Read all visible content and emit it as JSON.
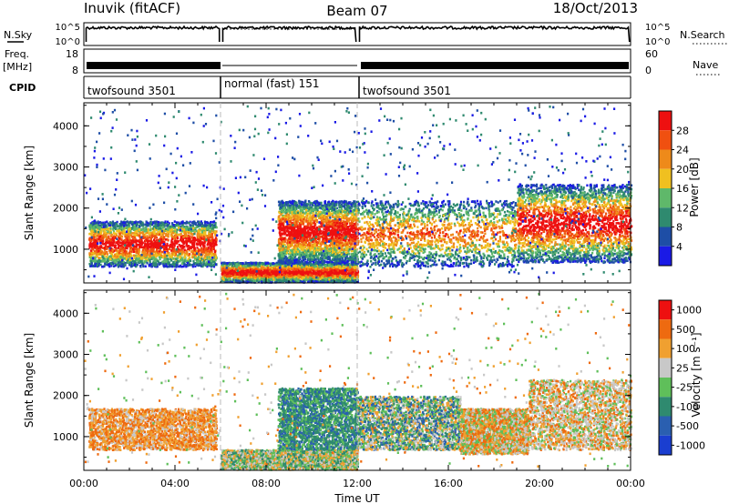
{
  "header": {
    "station": "Inuvik (fitACF)",
    "beam": "Beam 07",
    "date": "18/Oct/2013"
  },
  "sky_panel": {
    "left_label": "N.Sky",
    "right_label": "N.Search",
    "left_ticks": [
      "10^5",
      "10^0"
    ],
    "right_ticks": [
      "10^5",
      "10^0"
    ]
  },
  "freq_panel": {
    "label_line1": "Freq.",
    "label_line2": "[MHz]",
    "left_ticks": [
      "18",
      "8"
    ],
    "right_ticks": [
      "60",
      "0"
    ],
    "right_label": "Nave"
  },
  "cpid_panel": {
    "label": "CPID",
    "segments": [
      {
        "label": "twofsound 3501",
        "start_h": 0,
        "end_h": 6
      },
      {
        "label": "normal (fast) 151",
        "start_h": 6,
        "end_h": 12
      },
      {
        "label": "twofsound 3501",
        "start_h": 12,
        "end_h": 24
      }
    ]
  },
  "chart_data": [
    {
      "type": "heatmap",
      "name": "power",
      "ylabel": "Slant Range [km]",
      "xlabel": "",
      "ylim": [
        180,
        4560
      ],
      "xlim_hours": [
        0,
        24
      ],
      "yticks": [
        "1000",
        "2000",
        "3000",
        "4000"
      ],
      "colorbar": {
        "label": "Power [dB]",
        "ticks": [
          "4",
          "8",
          "12",
          "16",
          "20",
          "24",
          "28"
        ],
        "colors": [
          "#1a1ae6",
          "#1e4ea6",
          "#2f8a6f",
          "#5fb86a",
          "#f0c020",
          "#ee8a1a",
          "#f05010",
          "#ee1010"
        ]
      },
      "scatter_regions_hours_km": [
        {
          "t": [
            0.2,
            5.8
          ],
          "r": [
            600,
            1700
          ],
          "level": "high"
        },
        {
          "t": [
            6.0,
            12.0
          ],
          "r": [
            220,
            700
          ],
          "level": "high"
        },
        {
          "t": [
            8.5,
            12.0
          ],
          "r": [
            700,
            2200
          ],
          "level": "high"
        },
        {
          "t": [
            12.0,
            19.0
          ],
          "r": [
            600,
            2200
          ],
          "level": "mid"
        },
        {
          "t": [
            19.0,
            24.0
          ],
          "r": [
            700,
            2600
          ],
          "level": "high"
        }
      ]
    },
    {
      "type": "heatmap",
      "name": "velocity",
      "ylabel": "Slant Range [km]",
      "xlabel": "Time UT",
      "ylim": [
        180,
        4560
      ],
      "xlim_hours": [
        0,
        24
      ],
      "yticks": [
        "1000",
        "2000",
        "3000",
        "4000"
      ],
      "xticks": [
        "00:00",
        "04:00",
        "08:00",
        "12:00",
        "16:00",
        "20:00",
        "00:00"
      ],
      "colorbar": {
        "label": "Velocity [m s⁻¹]",
        "ticks": [
          "1000",
          "500",
          "100",
          "25",
          "-25",
          "-100",
          "-500",
          "-1000"
        ],
        "colors": [
          "#1a3ed0",
          "#2a5fb0",
          "#2f8a6f",
          "#5fbf5a",
          "#c8c8c8",
          "#f0a030",
          "#ee6a10",
          "#ee1010"
        ]
      }
    }
  ]
}
